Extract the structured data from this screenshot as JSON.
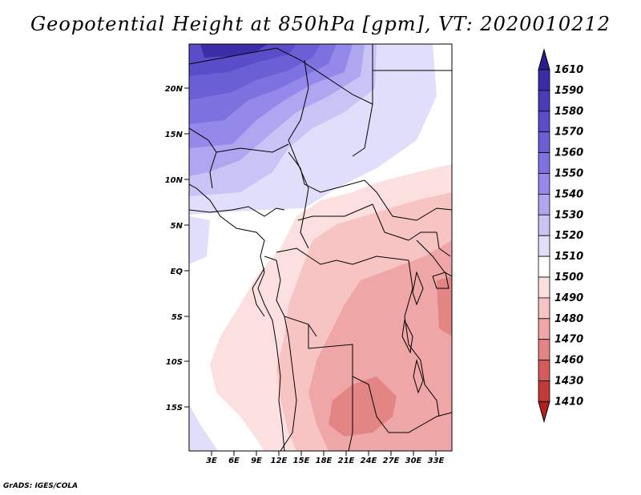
{
  "title": "Geopotential Height at 850hPa [gpm], VT: 2020010212",
  "credit": "GrADS: IGES/COLA",
  "map": {
    "lat_labels": [
      "20N",
      "15N",
      "10N",
      "5N",
      "EQ",
      "5S",
      "10S",
      "15S"
    ],
    "lon_labels": [
      "3E",
      "6E",
      "9E",
      "12E",
      "15E",
      "18E",
      "21E",
      "24E",
      "27E",
      "30E",
      "33E"
    ]
  },
  "colorbar": {
    "levels": [
      "1610",
      "1590",
      "1580",
      "1570",
      "1560",
      "1550",
      "1540",
      "1530",
      "1520",
      "1510",
      "1500",
      "1490",
      "1480",
      "1470",
      "1460",
      "1430",
      "1410"
    ],
    "colors": [
      "#2a1d8f",
      "#3a2ea6",
      "#4a3db8",
      "#5a4dc8",
      "#6b5fd6",
      "#7e72e0",
      "#9489ea",
      "#aea6f0",
      "#c8c4f6",
      "#e0defa",
      "#ffffff",
      "#fce0e0",
      "#f7c4c4",
      "#efa6a6",
      "#e38585",
      "#d45c5c",
      "#c43a3a",
      "#b21f1f"
    ]
  }
}
